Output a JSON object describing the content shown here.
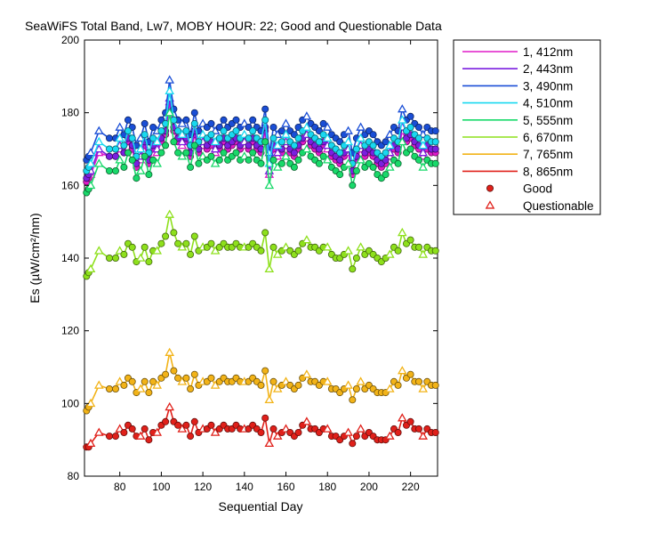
{
  "chart_data": {
    "type": "line",
    "title": "SeaWiFS Total Band,  Lw7, MOBY HOUR: 22;  Good and Questionable Data",
    "xlabel": "Sequential Day",
    "ylabel": "Es (µW/cm²/nm)",
    "xlim": [
      63,
      233
    ],
    "ylim": [
      80,
      200
    ],
    "xticks": [
      80,
      100,
      120,
      140,
      160,
      180,
      200,
      220
    ],
    "yticks": [
      80,
      100,
      120,
      140,
      160,
      180,
      200
    ],
    "legend_position": "outside-top-right",
    "legend": {
      "good_label": "Good",
      "questionable_label": "Questionable"
    },
    "x": [
      64,
      65,
      66,
      70,
      75,
      78,
      80,
      82,
      84,
      86,
      88,
      90,
      92,
      94,
      96,
      98,
      100,
      102,
      104,
      106,
      108,
      110,
      112,
      114,
      116,
      118,
      120,
      122,
      124,
      126,
      128,
      130,
      132,
      134,
      136,
      138,
      140,
      142,
      144,
      146,
      148,
      150,
      152,
      154,
      156,
      158,
      160,
      162,
      164,
      166,
      168,
      170,
      172,
      174,
      176,
      178,
      180,
      182,
      184,
      186,
      188,
      190,
      192,
      194,
      196,
      198,
      200,
      202,
      204,
      206,
      208,
      210,
      212,
      214,
      216,
      218,
      220,
      222,
      224,
      226,
      228,
      230,
      232
    ],
    "series": [
      {
        "name": "1, 412nm",
        "color": "#e01bc8",
        "values": [
          161,
          162,
          163,
          169,
          168,
          168,
          170,
          169,
          172,
          170,
          165,
          167,
          171,
          166,
          170,
          169,
          172,
          174,
          183,
          175,
          172,
          171,
          172,
          168,
          174,
          169,
          171,
          170,
          171,
          169,
          170,
          172,
          170,
          171,
          172,
          170,
          171,
          170,
          172,
          170,
          169,
          175,
          163,
          170,
          168,
          169,
          171,
          169,
          168,
          170,
          172,
          173,
          171,
          170,
          169,
          171,
          170,
          168,
          167,
          166,
          168,
          169,
          163,
          167,
          170,
          168,
          169,
          168,
          166,
          165,
          166,
          168,
          170,
          169,
          175,
          172,
          173,
          171,
          170,
          168,
          170,
          169,
          169
        ]
      },
      {
        "name": "2, 443nm",
        "color": "#7b1fe0",
        "values": [
          162,
          163,
          164,
          170,
          168,
          168,
          171,
          169,
          173,
          171,
          166,
          168,
          172,
          167,
          171,
          170,
          173,
          175,
          184,
          176,
          173,
          172,
          173,
          169,
          175,
          170,
          172,
          171,
          172,
          170,
          171,
          173,
          171,
          172,
          173,
          171,
          172,
          171,
          173,
          171,
          170,
          176,
          164,
          171,
          169,
          170,
          172,
          170,
          169,
          171,
          173,
          174,
          172,
          171,
          170,
          172,
          171,
          169,
          168,
          167,
          169,
          170,
          164,
          168,
          171,
          169,
          170,
          169,
          167,
          166,
          167,
          169,
          171,
          170,
          176,
          173,
          174,
          172,
          171,
          169,
          171,
          170,
          170
        ]
      },
      {
        "name": "3, 490nm",
        "color": "#1a4ed6",
        "values": [
          167,
          168,
          169,
          175,
          173,
          173,
          176,
          174,
          178,
          176,
          171,
          173,
          177,
          172,
          176,
          175,
          178,
          180,
          189,
          181,
          178,
          177,
          178,
          174,
          180,
          175,
          177,
          176,
          177,
          175,
          176,
          178,
          176,
          177,
          178,
          176,
          177,
          176,
          178,
          176,
          175,
          181,
          169,
          176,
          174,
          175,
          177,
          175,
          174,
          176,
          178,
          179,
          177,
          176,
          175,
          177,
          176,
          174,
          173,
          172,
          174,
          175,
          169,
          173,
          176,
          174,
          175,
          174,
          172,
          171,
          172,
          174,
          176,
          175,
          181,
          178,
          179,
          177,
          176,
          174,
          176,
          175,
          175
        ]
      },
      {
        "name": "4, 510nm",
        "color": "#19d8f0",
        "values": [
          164,
          165,
          166,
          172,
          170,
          170,
          173,
          171,
          175,
          173,
          168,
          170,
          174,
          169,
          173,
          172,
          175,
          177,
          186,
          178,
          175,
          174,
          175,
          171,
          177,
          172,
          174,
          173,
          174,
          172,
          173,
          175,
          173,
          174,
          175,
          173,
          174,
          173,
          175,
          173,
          172,
          178,
          166,
          173,
          171,
          172,
          174,
          172,
          171,
          173,
          175,
          176,
          174,
          173,
          172,
          174,
          173,
          171,
          170,
          169,
          171,
          172,
          166,
          170,
          173,
          171,
          172,
          171,
          169,
          168,
          169,
          171,
          173,
          172,
          178,
          175,
          176,
          174,
          173,
          171,
          173,
          172,
          172
        ]
      },
      {
        "name": "5, 555nm",
        "color": "#19d96a",
        "values": [
          158,
          159,
          160,
          166,
          164,
          164,
          167,
          165,
          169,
          167,
          162,
          164,
          168,
          163,
          167,
          166,
          169,
          171,
          180,
          172,
          169,
          168,
          169,
          165,
          171,
          166,
          168,
          167,
          168,
          166,
          167,
          169,
          167,
          168,
          169,
          167,
          168,
          167,
          169,
          167,
          166,
          172,
          160,
          167,
          165,
          166,
          168,
          166,
          165,
          167,
          169,
          170,
          168,
          167,
          166,
          168,
          167,
          165,
          164,
          163,
          165,
          166,
          160,
          164,
          167,
          165,
          166,
          165,
          163,
          162,
          163,
          165,
          167,
          166,
          172,
          169,
          170,
          168,
          167,
          165,
          167,
          166,
          166
        ]
      },
      {
        "name": "6, 670nm",
        "color": "#8ee01c",
        "values": [
          135,
          136,
          137,
          142,
          140,
          140,
          142,
          141,
          144,
          143,
          139,
          140,
          143,
          139,
          142,
          142,
          144,
          146,
          152,
          147,
          144,
          143,
          144,
          141,
          146,
          142,
          143,
          143,
          144,
          142,
          143,
          144,
          143,
          143,
          144,
          143,
          143,
          143,
          144,
          143,
          142,
          147,
          137,
          143,
          141,
          142,
          143,
          142,
          141,
          142,
          144,
          145,
          143,
          143,
          142,
          143,
          143,
          141,
          140,
          140,
          141,
          142,
          137,
          140,
          143,
          141,
          142,
          141,
          140,
          139,
          140,
          141,
          143,
          142,
          147,
          144,
          145,
          143,
          143,
          141,
          143,
          142,
          142
        ]
      },
      {
        "name": "7, 765nm",
        "color": "#f2b318",
        "values": [
          98,
          99,
          100,
          105,
          104,
          104,
          106,
          105,
          107,
          106,
          103,
          104,
          106,
          103,
          106,
          105,
          107,
          108,
          114,
          109,
          107,
          106,
          107,
          104,
          108,
          105,
          106,
          106,
          107,
          105,
          106,
          107,
          106,
          106,
          107,
          106,
          106,
          106,
          107,
          106,
          105,
          109,
          101,
          106,
          104,
          105,
          106,
          105,
          104,
          105,
          107,
          108,
          106,
          106,
          105,
          106,
          106,
          104,
          104,
          103,
          104,
          105,
          101,
          104,
          106,
          104,
          105,
          104,
          103,
          103,
          103,
          104,
          106,
          105,
          109,
          107,
          108,
          106,
          106,
          104,
          106,
          105,
          105
        ]
      },
      {
        "name": "8, 865nm",
        "color": "#e0201a",
        "values": [
          88,
          88,
          89,
          92,
          91,
          91,
          93,
          92,
          94,
          93,
          91,
          91,
          93,
          90,
          92,
          92,
          94,
          95,
          99,
          95,
          94,
          93,
          94,
          91,
          95,
          92,
          93,
          93,
          94,
          92,
          93,
          94,
          93,
          93,
          94,
          93,
          93,
          93,
          94,
          93,
          92,
          96,
          89,
          93,
          91,
          92,
          93,
          92,
          91,
          92,
          94,
          95,
          93,
          93,
          92,
          93,
          93,
          91,
          91,
          90,
          91,
          92,
          89,
          91,
          93,
          91,
          92,
          91,
          90,
          90,
          90,
          91,
          93,
          92,
          96,
          94,
          95,
          93,
          93,
          91,
          93,
          92,
          92
        ]
      }
    ],
    "markers": {
      "good_symbol": "filled-circle",
      "questionable_symbol": "open-triangle",
      "questionable_x": [
        66,
        70,
        80,
        90,
        98,
        104,
        110,
        120,
        126,
        140,
        152,
        156,
        160,
        170,
        180,
        190,
        196,
        210,
        216,
        226
      ]
    }
  }
}
